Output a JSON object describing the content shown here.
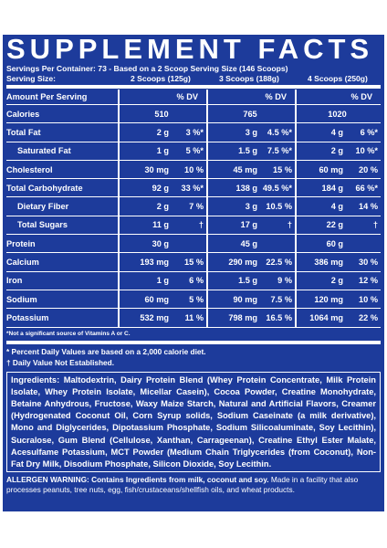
{
  "header": {
    "title": "SUPPLEMENT FACTS",
    "servings_per_container": "Servings Per Container: 73 - Based on a 2 Scoop Serving Size (146 Scoops)",
    "serving_size_label": "Serving Size:",
    "serving_sizes": [
      "2 Scoops (125g)",
      "3 Scoops (188g)",
      "4 Scoops (250g)"
    ]
  },
  "table": {
    "amount_label": "Amount Per Serving",
    "dv_labels": [
      "% DV",
      "% DV",
      "% DV"
    ],
    "rows": [
      {
        "name": "Calories",
        "cells": [
          {
            "amount": "510"
          },
          {
            "amount": "765"
          },
          {
            "amount": "1020"
          }
        ]
      },
      {
        "name": "Total Fat",
        "cells": [
          {
            "amount": "2 g",
            "dv": "3 %*"
          },
          {
            "amount": "3 g",
            "dv": "4.5 %*"
          },
          {
            "amount": "4 g",
            "dv": "6 %*"
          }
        ]
      },
      {
        "name": "Saturated Fat",
        "indent": true,
        "cells": [
          {
            "amount": "1 g",
            "dv": "5 %*"
          },
          {
            "amount": "1.5 g",
            "dv": "7.5 %*"
          },
          {
            "amount": "2 g",
            "dv": "10 %*"
          }
        ]
      },
      {
        "name": "Cholesterol",
        "cells": [
          {
            "amount": "30 mg",
            "dv": "10 %"
          },
          {
            "amount": "45 mg",
            "dv": "15 %"
          },
          {
            "amount": "60 mg",
            "dv": "20 %"
          }
        ]
      },
      {
        "name": "Total Carbohydrate",
        "cells": [
          {
            "amount": "92 g",
            "dv": "33 %*"
          },
          {
            "amount": "138 g",
            "dv": "49.5 %*"
          },
          {
            "amount": "184 g",
            "dv": "66 %*"
          }
        ]
      },
      {
        "name": "Dietary Fiber",
        "indent": true,
        "cells": [
          {
            "amount": "2 g",
            "dv": "7 %"
          },
          {
            "amount": "3 g",
            "dv": "10.5 %"
          },
          {
            "amount": "4 g",
            "dv": "14 %"
          }
        ]
      },
      {
        "name": "Total Sugars",
        "indent": true,
        "cells": [
          {
            "amount": "11 g",
            "dv": "†"
          },
          {
            "amount": "17 g",
            "dv": "†"
          },
          {
            "amount": "22 g",
            "dv": "†"
          }
        ]
      },
      {
        "name": "Protein",
        "cells": [
          {
            "amount": "30 g"
          },
          {
            "amount": "45 g"
          },
          {
            "amount": "60 g"
          }
        ]
      },
      {
        "name": "Calcium",
        "cells": [
          {
            "amount": "193 mg",
            "dv": "15 %"
          },
          {
            "amount": "290 mg",
            "dv": "22.5 %"
          },
          {
            "amount": "386 mg",
            "dv": "30 %"
          }
        ]
      },
      {
        "name": "Iron",
        "cells": [
          {
            "amount": "1 g",
            "dv": "6 %"
          },
          {
            "amount": "1.5 g",
            "dv": "9 %"
          },
          {
            "amount": "2 g",
            "dv": "12 %"
          }
        ]
      },
      {
        "name": "Sodium",
        "cells": [
          {
            "amount": "60 mg",
            "dv": "5 %"
          },
          {
            "amount": "90 mg",
            "dv": "7.5 %"
          },
          {
            "amount": "120 mg",
            "dv": "10 %"
          }
        ]
      },
      {
        "name": "Potassium",
        "cells": [
          {
            "amount": "532 mg",
            "dv": "11 %"
          },
          {
            "amount": "798 mg",
            "dv": "16.5 %"
          },
          {
            "amount": "1064 mg",
            "dv": "22 %"
          }
        ]
      }
    ],
    "note": "*Not a significant source of Vitamins A or C."
  },
  "footnotes": [
    "* Percent Daily Values are based on a 2,000 calorie diet.",
    "† Daily Value Not Established."
  ],
  "ingredients": {
    "label": "Ingredients:",
    "text": "Maltodextrin, Dairy Protein Blend (Whey Protein Concentrate, Milk Protein Isolate, Whey Protein Isolate, Micellar Casein), Cocoa Powder, Creatine Monohydrate, Betaine Anhydrous, Fructose, Waxy Maize Starch, Natural and Artificial Flavors, Creamer (Hydrogenated Coconut Oil, Corn Syrup solids, Sodium Caseinate (a milk derivative), Mono and Diglycerides, Dipotassium Phosphate, Sodium Silicoaluminate, Soy Lecithin), Sucralose, Gum Blend (Cellulose, Xanthan, Carrageenan), Creatine Ethyl Ester Malate, Acesulfame Potassium, MCT Powder (Medium Chain Triglycerides (from Coconut), Non-Fat Dry Milk, Disodium Phosphate, Silicon Dioxide, Soy Lecithin."
  },
  "allergen": {
    "label": "ALLERGEN WARNING:",
    "contains": "Contains Ingredients from milk, coconut and soy.",
    "text": "Made in a facility that also processes peanuts, tree nuts, egg, fish/crustaceans/shellfish oils, and wheat products."
  }
}
